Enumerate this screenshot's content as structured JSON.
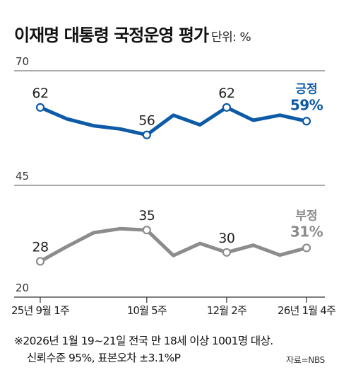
{
  "header": {
    "title": "이재명 대통령 국정운영 평가",
    "unit": "단위: %"
  },
  "chart_data": {
    "type": "line",
    "x": [
      "25년 9월 1주",
      "",
      "",
      "",
      "10월 5주",
      "",
      "",
      "12월 2주",
      "",
      "",
      "26년 1월 4주"
    ],
    "xticks": [
      "25년 9월 1주",
      "10월 5주",
      "12월 2주",
      "26년 1월 4주"
    ],
    "yticks": [
      70,
      45,
      20
    ],
    "ylim": [
      20,
      70
    ],
    "series": [
      {
        "name": "긍정",
        "color": "#0d5aa7",
        "values": [
          62,
          59.5,
          58,
          57.3,
          56,
          60.3,
          58.2,
          62,
          59.2,
          60.3,
          59
        ],
        "labels": [
          "62",
          "56",
          "62"
        ],
        "end_label": "긍정",
        "end_value": "59%"
      },
      {
        "name": "부정",
        "color": "#8c8c8c",
        "values": [
          28,
          31.3,
          34.4,
          35.3,
          35,
          29.3,
          32,
          30,
          31.6,
          29.4,
          31
        ],
        "labels": [
          "28",
          "35",
          "30"
        ],
        "end_label": "부정",
        "end_value": "31%"
      }
    ]
  },
  "footnote": {
    "line1": "※2026년 1월 19~21일 전국 만 18세 이상 1001명 대상.",
    "line2": "신뢰수준 95%, 표본오차 ±3.1%P"
  },
  "source": "자료=NBS"
}
